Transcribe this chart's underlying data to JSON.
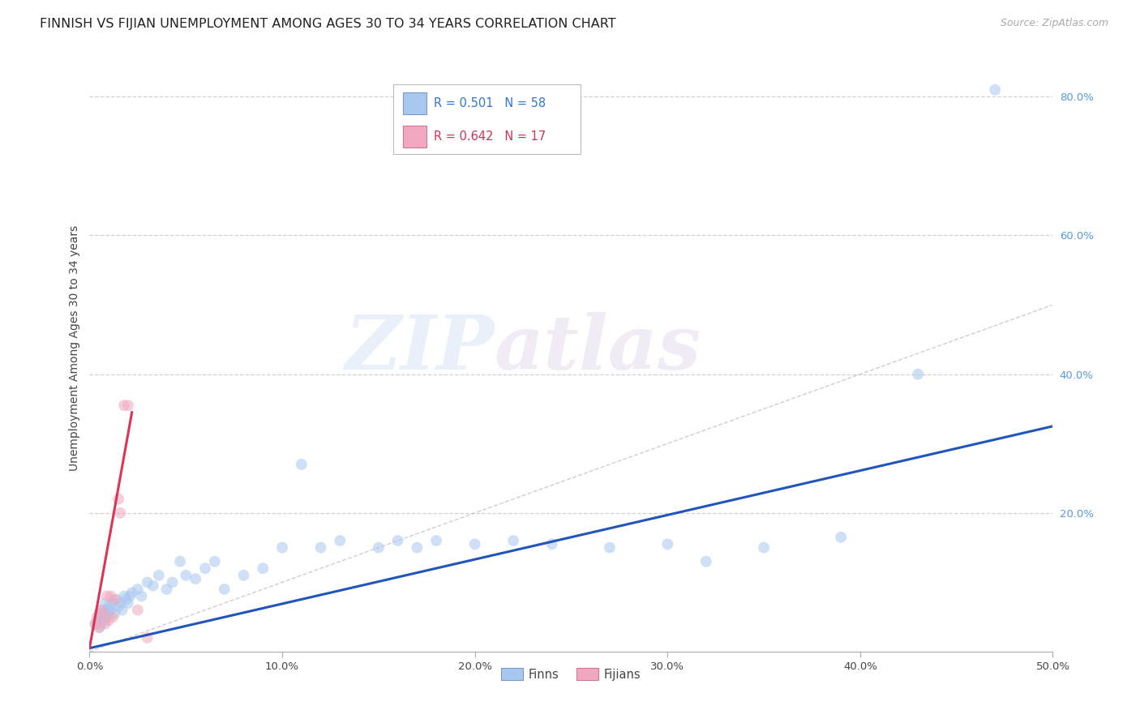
{
  "title": "FINNISH VS FIJIAN UNEMPLOYMENT AMONG AGES 30 TO 34 YEARS CORRELATION CHART",
  "source": "Source: ZipAtlas.com",
  "ylabel": "Unemployment Among Ages 30 to 34 years",
  "xlim": [
    0.0,
    0.5
  ],
  "ylim": [
    0.0,
    0.875
  ],
  "xticks": [
    0.0,
    0.1,
    0.2,
    0.3,
    0.4,
    0.5
  ],
  "yticks": [
    0.2,
    0.4,
    0.6,
    0.8
  ],
  "ytick_labels": [
    "20.0%",
    "40.0%",
    "60.0%",
    "80.0%"
  ],
  "xtick_labels": [
    "0.0%",
    "10.0%",
    "20.0%",
    "30.0%",
    "40.0%",
    "50.0%"
  ],
  "finns_R": "0.501",
  "finns_N": "58",
  "fijians_R": "0.642",
  "fijians_N": "17",
  "finns_color": "#a8c8f0",
  "fijians_color": "#f0a8c0",
  "finns_line_color": "#2255bb",
  "fijians_line_color": "#dd3355",
  "diagonal_color": "#bbbbbb",
  "watermark_zip": "ZIP",
  "watermark_atlas": "atlas",
  "finns_x": [
    0.003,
    0.004,
    0.005,
    0.005,
    0.006,
    0.007,
    0.007,
    0.008,
    0.008,
    0.009,
    0.009,
    0.01,
    0.01,
    0.011,
    0.012,
    0.013,
    0.014,
    0.015,
    0.016,
    0.017,
    0.018,
    0.019,
    0.02,
    0.021,
    0.022,
    0.025,
    0.027,
    0.03,
    0.033,
    0.036,
    0.04,
    0.043,
    0.047,
    0.05,
    0.055,
    0.06,
    0.065,
    0.07,
    0.08,
    0.09,
    0.1,
    0.11,
    0.12,
    0.13,
    0.15,
    0.16,
    0.17,
    0.18,
    0.2,
    0.22,
    0.24,
    0.27,
    0.3,
    0.32,
    0.35,
    0.39,
    0.43,
    0.47
  ],
  "finns_y": [
    0.04,
    0.045,
    0.035,
    0.055,
    0.04,
    0.05,
    0.06,
    0.045,
    0.07,
    0.05,
    0.06,
    0.055,
    0.065,
    0.06,
    0.07,
    0.055,
    0.075,
    0.065,
    0.07,
    0.06,
    0.08,
    0.075,
    0.07,
    0.08,
    0.085,
    0.09,
    0.08,
    0.1,
    0.095,
    0.11,
    0.09,
    0.1,
    0.13,
    0.11,
    0.105,
    0.12,
    0.13,
    0.09,
    0.11,
    0.12,
    0.15,
    0.27,
    0.15,
    0.16,
    0.15,
    0.16,
    0.15,
    0.16,
    0.155,
    0.16,
    0.155,
    0.15,
    0.155,
    0.13,
    0.15,
    0.165,
    0.4,
    0.81
  ],
  "fijians_x": [
    0.003,
    0.004,
    0.005,
    0.006,
    0.007,
    0.008,
    0.009,
    0.01,
    0.011,
    0.012,
    0.013,
    0.015,
    0.016,
    0.018,
    0.02,
    0.025,
    0.03
  ],
  "fijians_y": [
    0.04,
    0.05,
    0.035,
    0.06,
    0.055,
    0.04,
    0.08,
    0.045,
    0.08,
    0.05,
    0.075,
    0.22,
    0.2,
    0.355,
    0.355,
    0.06,
    0.02
  ],
  "finns_line_x0": 0.0,
  "finns_line_x1": 0.5,
  "finns_line_y0": 0.005,
  "finns_line_y1": 0.325,
  "fijians_line_x0": 0.0,
  "fijians_line_x1": 0.022,
  "fijians_line_y0": 0.005,
  "fijians_line_y1": 0.345,
  "background_color": "#ffffff",
  "grid_color": "#cccccc",
  "title_fontsize": 11.5,
  "label_fontsize": 10,
  "tick_fontsize": 9.5,
  "marker_size": 100,
  "marker_alpha": 0.55,
  "line_width": 2.2
}
